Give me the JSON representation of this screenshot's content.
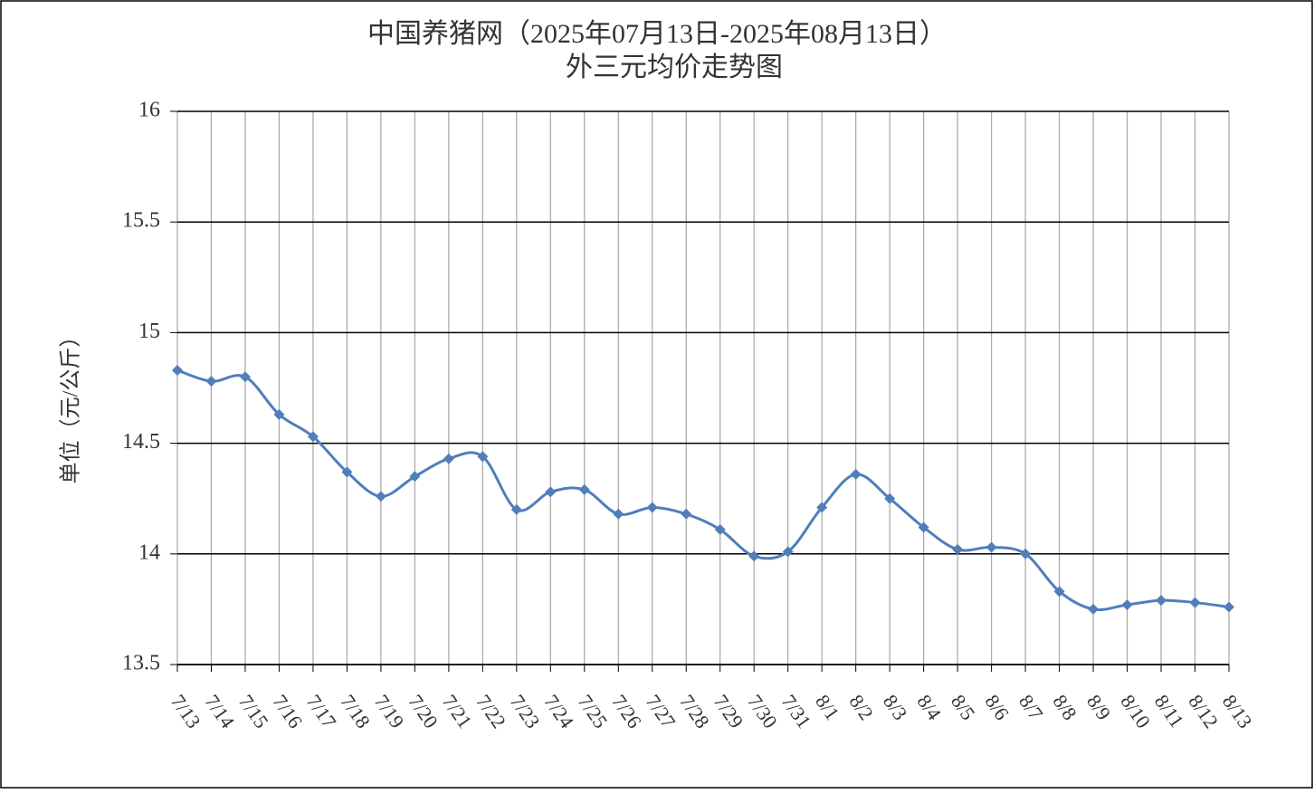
{
  "chart_data": {
    "type": "line",
    "title": "中国养猪网（2025年07月13日-2025年08月13日）",
    "subtitle": "外三元均价走势图",
    "y_label": "单位（元/公斤）",
    "categories": [
      "7/13",
      "7/14",
      "7/15",
      "7/16",
      "7/17",
      "7/18",
      "7/19",
      "7/20",
      "7/21",
      "7/22",
      "7/23",
      "7/24",
      "7/25",
      "7/26",
      "7/27",
      "7/28",
      "7/29",
      "7/30",
      "7/31",
      "8/1",
      "8/2",
      "8/3",
      "8/4",
      "8/5",
      "8/6",
      "8/7",
      "8/8",
      "8/9",
      "8/10",
      "8/11",
      "8/12",
      "8/13"
    ],
    "values": [
      14.83,
      14.78,
      14.8,
      14.63,
      14.53,
      14.37,
      14.26,
      14.35,
      14.43,
      14.44,
      14.2,
      14.28,
      14.29,
      14.18,
      14.21,
      14.18,
      14.11,
      13.99,
      14.01,
      14.21,
      14.36,
      14.25,
      14.12,
      14.02,
      14.03,
      14.0,
      13.83,
      13.75,
      13.77,
      13.79,
      13.78,
      13.76
    ],
    "color": "#4f7ebb",
    "ylim": [
      13.5,
      16
    ],
    "yticks": [
      13.5,
      14,
      14.5,
      15,
      15.5,
      16
    ],
    "grid": true
  }
}
